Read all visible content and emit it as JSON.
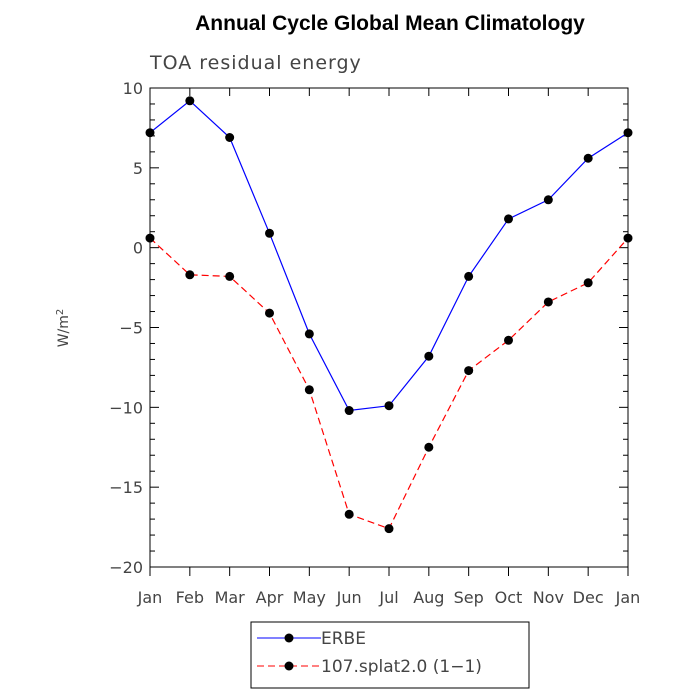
{
  "chart_data": {
    "type": "line",
    "title": "Annual Cycle Global Mean Climatology",
    "subtitle": "TOA residual energy",
    "ylabel": "W/m",
    "ylabel_sup": "2",
    "xlabel": "",
    "categories": [
      "Jan",
      "Feb",
      "Mar",
      "Apr",
      "May",
      "Jun",
      "Jul",
      "Aug",
      "Sep",
      "Oct",
      "Nov",
      "Dec",
      "Jan"
    ],
    "ylim": [
      -20,
      10
    ],
    "yticks": [
      10,
      5,
      0,
      -5,
      -10,
      -15,
      -20
    ],
    "ytick_labels": [
      "10",
      "5",
      "0",
      "−5",
      "−10",
      "−15",
      "−20"
    ],
    "series": [
      {
        "name": "ERBE",
        "color": "#0000ff",
        "dash": "solid",
        "marker": "circle",
        "values": [
          7.2,
          9.2,
          6.9,
          0.9,
          -5.4,
          -10.2,
          -9.9,
          -6.8,
          -1.8,
          1.8,
          3.0,
          5.6,
          7.2
        ]
      },
      {
        "name": "107.splat2.0 (1−1)",
        "color": "#ff0000",
        "dash": "dashed",
        "marker": "circle",
        "values": [
          0.6,
          -1.7,
          -1.8,
          -4.1,
          -8.9,
          -16.7,
          -17.6,
          -12.5,
          -7.7,
          -5.8,
          -3.4,
          -2.2,
          0.6
        ]
      }
    ],
    "legend_position": "bottom-center"
  }
}
